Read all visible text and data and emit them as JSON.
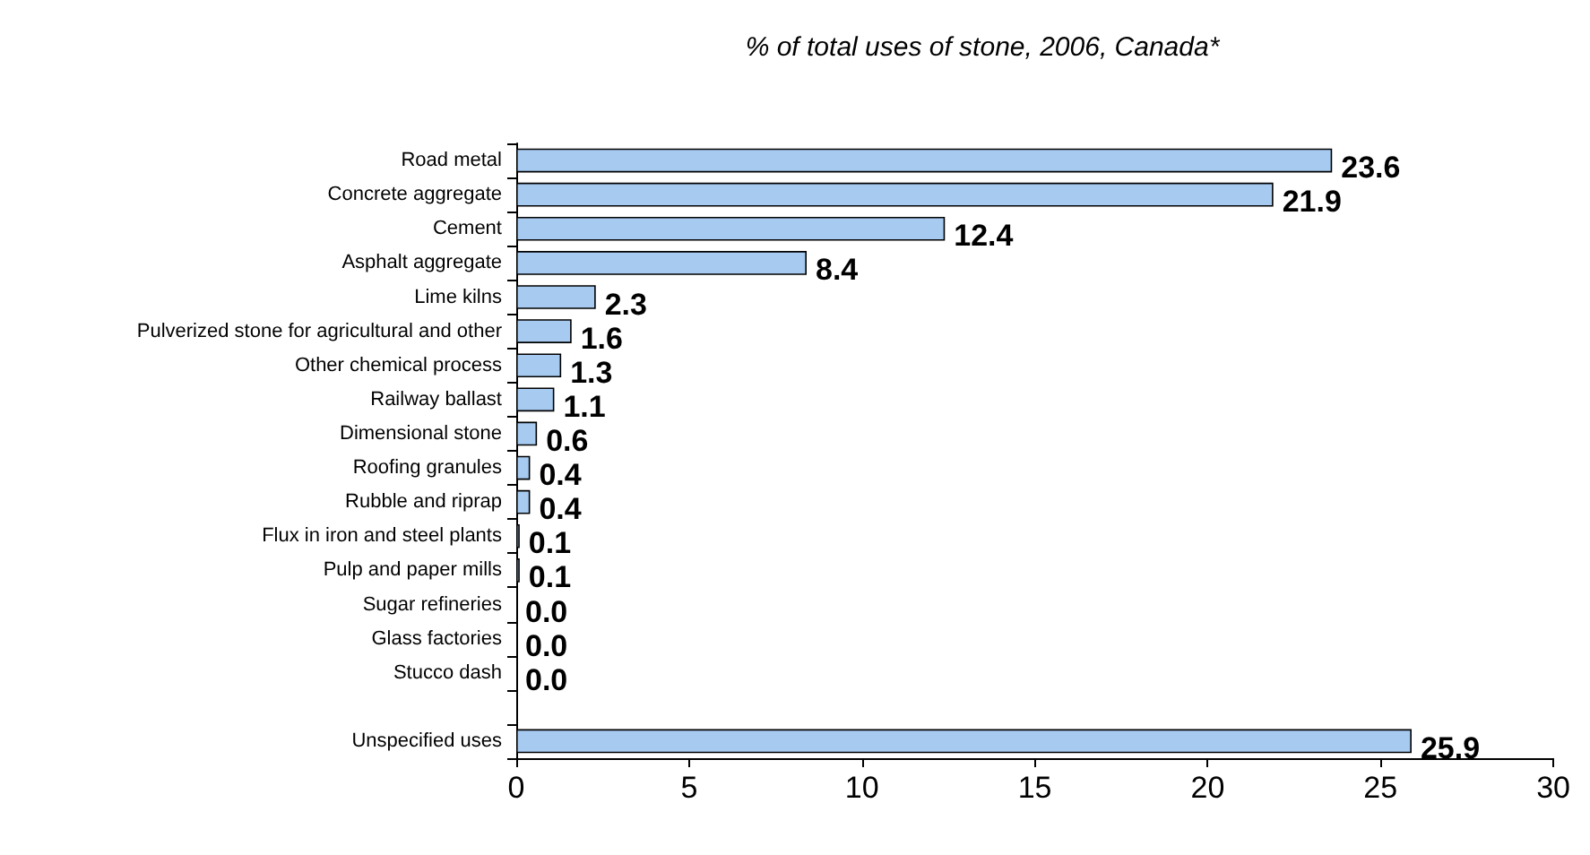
{
  "chart_data": {
    "type": "bar",
    "orientation": "horizontal",
    "title": "% of total uses of stone, 2006, Canada*",
    "categories": [
      "Road metal",
      "Concrete aggregate",
      "Cement",
      "Asphalt aggregate",
      "Lime kilns",
      "Pulverized stone for agricultural and other",
      "Other chemical process",
      "Railway ballast",
      "Dimensional stone",
      "Roofing granules",
      "Rubble and riprap",
      "Flux in iron and steel plants",
      "Pulp and paper mills",
      "Sugar refineries",
      "Glass factories",
      "Stucco dash",
      null,
      "Unspecified uses"
    ],
    "values": [
      23.6,
      21.9,
      12.4,
      8.4,
      2.3,
      1.6,
      1.3,
      1.1,
      0.6,
      0.4,
      0.4,
      0.1,
      0.1,
      0.0,
      0.0,
      0.0,
      null,
      25.9
    ],
    "value_labels": [
      "23.6",
      "21.9",
      "12.4",
      "8.4",
      "2.3",
      "1.6",
      "1.3",
      "1.1",
      "0.6",
      "0.4",
      "0.4",
      "0.1",
      "0.1",
      "0.0",
      "0.0",
      "0.0",
      null,
      "25.9"
    ],
    "color": "#a6caf0",
    "xlim": [
      0,
      30
    ],
    "xticks": [
      0,
      5,
      10,
      15,
      20,
      25,
      30
    ],
    "grid": false
  }
}
